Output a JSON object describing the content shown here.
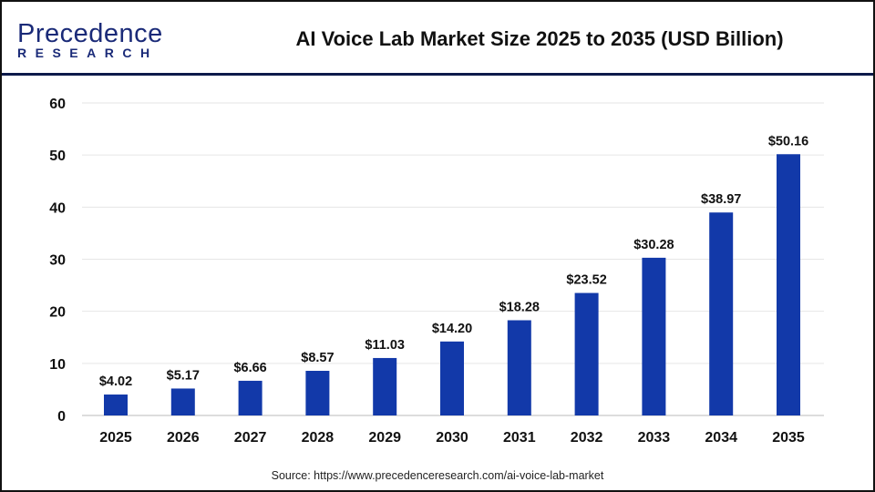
{
  "header": {
    "logo_text": "Precedence",
    "logo_subtext": "RESEARCH",
    "title": "AI Voice Lab Market Size 2025 to 2035 (USD Billion)"
  },
  "colors": {
    "bar": "#1239a9",
    "logo_navy": "#1a2a78",
    "logo_blue": "#2f6fe0",
    "divider": "#0c1a4a"
  },
  "chart_data": {
    "type": "bar",
    "title": "AI Voice Lab Market Size 2025 to 2035 (USD Billion)",
    "categories": [
      "2025",
      "2026",
      "2027",
      "2028",
      "2029",
      "2030",
      "2031",
      "2032",
      "2033",
      "2034",
      "2035"
    ],
    "values": [
      4.02,
      5.17,
      6.66,
      8.57,
      11.03,
      14.2,
      18.28,
      23.52,
      30.28,
      38.97,
      50.16
    ],
    "data_labels": [
      "$4.02",
      "$5.17",
      "$6.66",
      "$8.57",
      "$11.03",
      "$14.20",
      "$18.28",
      "$23.52",
      "$30.28",
      "$38.97",
      "$50.16"
    ],
    "ylim": [
      0,
      60
    ],
    "yticks": [
      0,
      10,
      20,
      30,
      40,
      50,
      60
    ],
    "grid": true,
    "xlabel": "",
    "ylabel": ""
  },
  "source": "Source: https://www.precedenceresearch.com/ai-voice-lab-market"
}
